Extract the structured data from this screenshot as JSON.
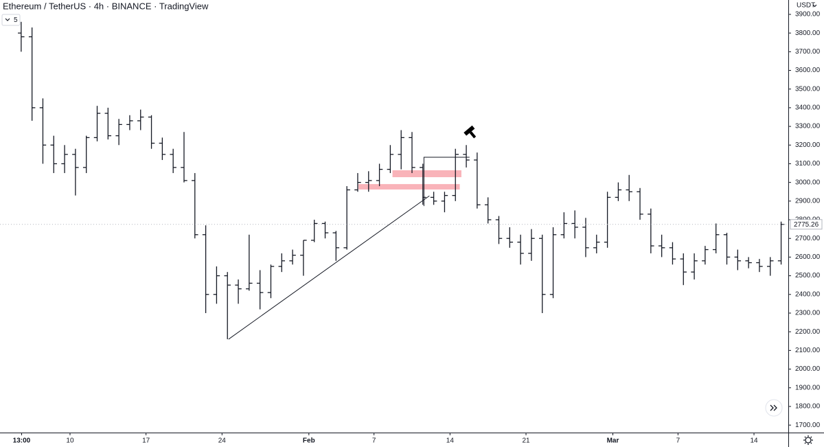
{
  "chart_data": {
    "type": "ohlc",
    "title": "Ethereum / TetherUS · 4h · BINANCE · TradingView",
    "indicator_count": "5",
    "currency": "USDT",
    "color": "#131722",
    "x": [
      5,
      6,
      7,
      8,
      9,
      10,
      11,
      12,
      13,
      14,
      15,
      16,
      17,
      18,
      19,
      20,
      21,
      22,
      23,
      24,
      25,
      26,
      27,
      28,
      29,
      30,
      31,
      32,
      33,
      34,
      35,
      36,
      37,
      38,
      39,
      40,
      41,
      42,
      43,
      44,
      45,
      46,
      47,
      48,
      49,
      50,
      51,
      52,
      53,
      54,
      55,
      56,
      57,
      58,
      59,
      60,
      61,
      62,
      63,
      64,
      65,
      66,
      67,
      68,
      69,
      70,
      71,
      72,
      73,
      74,
      75
    ],
    "open": [
      3800,
      3780,
      3400,
      3200,
      3100,
      3150,
      3080,
      3240,
      3370,
      3250,
      3310,
      3330,
      3350,
      3210,
      3150,
      3080,
      3010,
      2720,
      2400,
      2500,
      2450,
      2430,
      2460,
      2410,
      2550,
      2580,
      2610,
      2690,
      2780,
      2730,
      2650,
      2960,
      3000,
      3010,
      3070,
      3150,
      3240,
      3080,
      2920,
      2900,
      2930,
      3150,
      3120,
      2880,
      2800,
      2700,
      2680,
      2620,
      2700,
      2400,
      2720,
      2780,
      2760,
      2650,
      2680,
      2920,
      2960,
      2950,
      2830,
      2660,
      2650,
      2590,
      2520,
      2580,
      2640,
      2720,
      2600,
      2580,
      2570,
      2550,
      2580
    ],
    "high": [
      3860,
      3830,
      3450,
      3250,
      3200,
      3180,
      3250,
      3410,
      3400,
      3340,
      3360,
      3390,
      3360,
      3240,
      3180,
      3270,
      3050,
      2770,
      2550,
      2520,
      2480,
      2720,
      2530,
      2560,
      2620,
      2640,
      2690,
      2800,
      2790,
      2740,
      2980,
      3050,
      3060,
      3100,
      3200,
      3280,
      3270,
      3100,
      2950,
      2950,
      3180,
      3200,
      3160,
      2920,
      2820,
      2760,
      2720,
      2750,
      2720,
      2760,
      2840,
      2850,
      2810,
      2720,
      2950,
      3000,
      3040,
      2970,
      2860,
      2720,
      2680,
      2620,
      2620,
      2660,
      2780,
      2730,
      2640,
      2600,
      2590,
      2600,
      2790
    ],
    "low": [
      3700,
      3330,
      3100,
      3050,
      3050,
      2930,
      3050,
      3220,
      3230,
      3200,
      3280,
      3280,
      3180,
      3120,
      3050,
      3000,
      2700,
      2300,
      2350,
      2160,
      2350,
      2420,
      2320,
      2380,
      2520,
      2560,
      2500,
      2680,
      2700,
      2580,
      2640,
      2950,
      2950,
      2980,
      3050,
      3070,
      3050,
      2880,
      2880,
      2840,
      2900,
      3080,
      2860,
      2780,
      2670,
      2650,
      2560,
      2580,
      2300,
      2380,
      2700,
      2700,
      2600,
      2620,
      2650,
      2900,
      2900,
      2800,
      2620,
      2600,
      2560,
      2450,
      2480,
      2560,
      2620,
      2560,
      2530,
      2540,
      2520,
      2500,
      2560
    ],
    "close": [
      3780,
      3400,
      3200,
      3100,
      3150,
      3080,
      3240,
      3370,
      3250,
      3310,
      3330,
      3350,
      3210,
      3150,
      3080,
      3010,
      2720,
      2400,
      2500,
      2450,
      2430,
      2460,
      2410,
      2550,
      2580,
      2610,
      2690,
      2780,
      2730,
      2650,
      2960,
      3000,
      3010,
      3070,
      3150,
      3240,
      3080,
      2920,
      2900,
      2930,
      3150,
      3120,
      2880,
      2800,
      2700,
      2680,
      2620,
      2700,
      2400,
      2720,
      2780,
      2760,
      2650,
      2680,
      2920,
      2960,
      2950,
      2830,
      2660,
      2650,
      2590,
      2520,
      2580,
      2640,
      2720,
      2600,
      2580,
      2570,
      2550,
      2580,
      2775.26
    ],
    "last_price": 2775.26,
    "xlim": [
      3.55,
      76.16
    ],
    "xticks": [
      {
        "value": 5.54,
        "label": "13:00"
      },
      10,
      17,
      24,
      {
        "value": 32,
        "label": "Feb"
      },
      {
        "value": 38,
        "label": "7"
      },
      {
        "value": 45,
        "label": "14"
      },
      {
        "value": 52,
        "label": "21"
      },
      {
        "value": 60,
        "label": "Mar"
      },
      {
        "value": 66,
        "label": "7"
      },
      {
        "value": 73,
        "label": "14"
      }
    ],
    "ylim": [
      1660,
      3977
    ],
    "yticks": [
      {
        "value": 1700,
        "label": "1700.00"
      },
      {
        "value": 1800,
        "label": "1800.00"
      },
      {
        "value": 1900,
        "label": "1900.00"
      },
      {
        "value": 2000,
        "label": "2000.00"
      },
      {
        "value": 2100,
        "label": "2100.00"
      },
      {
        "value": 2200,
        "label": "2200.00"
      },
      {
        "value": 2300,
        "label": "2300.00"
      },
      {
        "value": 2400,
        "label": "2400.00"
      },
      {
        "value": 2500,
        "label": "2500.00"
      },
      {
        "value": 2600,
        "label": "2600.00"
      },
      {
        "value": 2700,
        "label": "2700.00"
      },
      {
        "value": 2800,
        "label": "2800.00"
      },
      {
        "value": 2900,
        "label": "2900.00"
      },
      {
        "value": 3000,
        "label": "3000.00"
      },
      {
        "value": 3100,
        "label": "3100.00"
      },
      {
        "value": 3200,
        "label": "3200.00"
      },
      {
        "value": 3300,
        "label": "3300.00"
      },
      {
        "value": 3400,
        "label": "3400.00"
      },
      {
        "value": 3500,
        "label": "3500.00"
      },
      {
        "value": 3600,
        "label": "3600.00"
      },
      {
        "value": 3700,
        "label": "3700.00"
      },
      {
        "value": 3800,
        "label": "3800.00"
      },
      {
        "value": 3900,
        "label": "3900.00"
      }
    ],
    "trendline": {
      "x": [
        24.6,
        43.1
      ],
      "y": [
        2160,
        2928
      ]
    },
    "box": {
      "x": [
        42.6,
        46.8
      ],
      "y": [
        3135,
        2873
      ]
    },
    "zones": [
      {
        "x": [
          39.7,
          46.05
        ],
        "y": [
          3028,
          3065
        ],
        "color": "#f9b3b9"
      },
      {
        "x": [
          36.57,
          45.9
        ],
        "y": [
          2962,
          2991
        ],
        "color": "#f9b3b9"
      }
    ]
  }
}
